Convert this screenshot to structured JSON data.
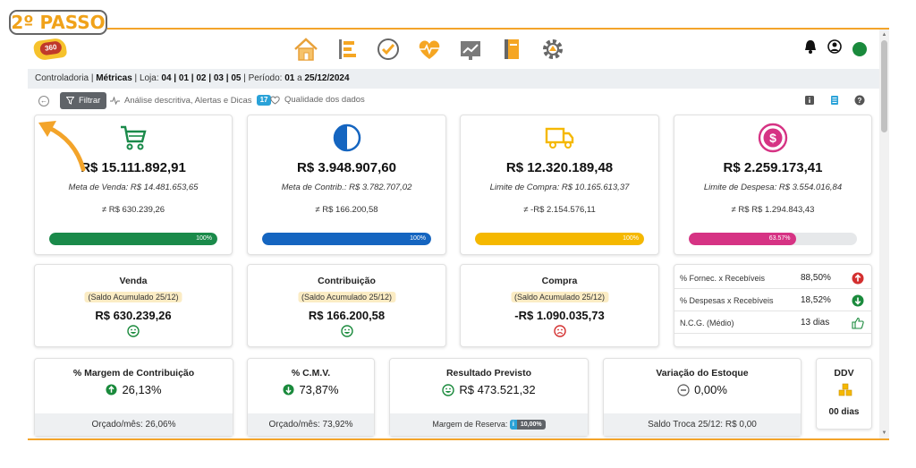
{
  "step_tag": "2º PASSO",
  "brand": {
    "logo_text": "360"
  },
  "nav": [
    "home-icon",
    "timeline-icon",
    "check-clock-icon",
    "heart-pulse-icon",
    "chart-icon",
    "notebook-icon",
    "gear-icon"
  ],
  "breadcrumb": {
    "module": "Controladoria",
    "section": "Métricas",
    "store_label": "Loja:",
    "stores": "04 | 01 | 02 | 03 | 05",
    "period_label": "Período:",
    "period_start": "01",
    "period_sep": "a",
    "period_end": "25/12/2024"
  },
  "toolbar": {
    "filter_label": "Filtrar",
    "analysis_label": "Análise descritiva, Alertas e Dicas",
    "analysis_count": "17",
    "quality_label": "Qualidade dos dados"
  },
  "kpis": [
    {
      "icon": "cart-icon",
      "color": "#1a8a4a",
      "value": "R$ 15.111.892,91",
      "meta": "Meta de Venda: R$ 14.481.653,65",
      "diff": "≠ R$ 630.239,26",
      "progress": 100,
      "progress_label": "100%"
    },
    {
      "icon": "half-circle-icon",
      "color": "#1565c0",
      "value": "R$ 3.948.907,60",
      "meta": "Meta de Contrib.: R$ 3.782.707,02",
      "diff": "≠ R$ 166.200,58",
      "progress": 100,
      "progress_label": "100%"
    },
    {
      "icon": "truck-icon",
      "color": "#f5b800",
      "value": "R$ 12.320.189,48",
      "meta": "Limite de Compra: R$ 10.165.613,37",
      "diff": "≠ -R$ 2.154.576,11",
      "progress": 100,
      "progress_label": "100%"
    },
    {
      "icon": "dollar-coin-icon",
      "color": "#d63384",
      "value": "R$ 2.259.173,41",
      "meta": "Limite de Despesa: R$ 3.554.016,84",
      "diff": "≠ R$ R$ 1.294.843,43",
      "progress": 63.57,
      "progress_label": "63.57%"
    }
  ],
  "summaries": [
    {
      "title": "Venda",
      "sub": "(Saldo Acumulado 25/12)",
      "value": "R$ 630.239,26",
      "mood": "happy"
    },
    {
      "title": "Contribuição",
      "sub": "(Saldo Acumulado 25/12)",
      "value": "R$ 166.200,58",
      "mood": "happy"
    },
    {
      "title": "Compra",
      "sub": "(Saldo Acumulado 25/12)",
      "value": "-R$ 1.090.035,73",
      "mood": "sad"
    }
  ],
  "ratios": [
    {
      "label": "% Fornec. x Recebíveis",
      "value": "88,50%",
      "icon": "arrow-up-red-icon"
    },
    {
      "label": "% Despesas x Recebíveis",
      "value": "18,52%",
      "icon": "arrow-down-green-icon"
    },
    {
      "label": "N.C.G. (Médio)",
      "value": "13 dias",
      "icon": "thumbs-up-icon"
    }
  ],
  "bottom": {
    "margin": {
      "title": "% Margem de Contribuição",
      "value": "26,13%",
      "foot": "Orçado/mês: 26,06%"
    },
    "cmv": {
      "title": "% C.M.V.",
      "value": "73,87%",
      "foot": "Orçado/mês: 73,92%"
    },
    "result": {
      "title": "Resultado Previsto",
      "value": "R$ 473.521,32",
      "foot_label": "Margem de Reserva:",
      "badge_i": "i",
      "badge_value": "10,00%"
    },
    "stock": {
      "title": "Variação do Estoque",
      "value": "0,00%",
      "foot": "Saldo Troca 25/12: R$ 0,00"
    },
    "ddv": {
      "title": "DDV",
      "value": "00 dias"
    }
  },
  "colors": {
    "accent": "#f3a42a",
    "green": "#1a8a3c",
    "blue": "#1565c0",
    "yellow": "#f5b800",
    "pink": "#d63384",
    "red": "#d32f2f"
  }
}
